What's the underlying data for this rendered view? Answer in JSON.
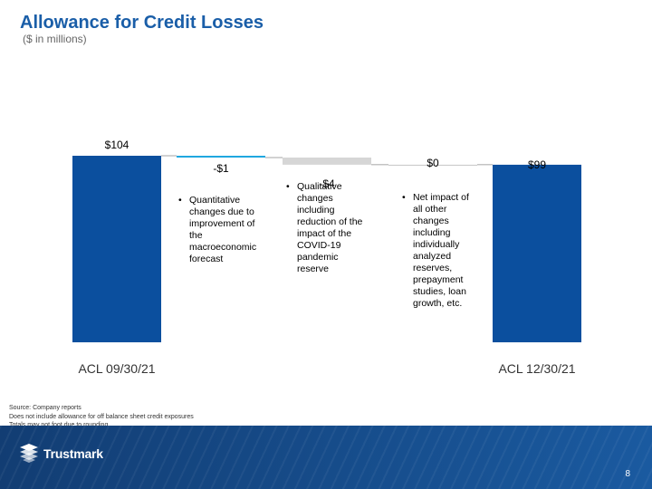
{
  "header": {
    "title": "Allowance for Credit Losses",
    "subtitle": "($ in millions)"
  },
  "chart_data": {
    "type": "bar",
    "subtype": "waterfall",
    "categories": [
      "ACL 09/30/21",
      "",
      "",
      "",
      "ACL 12/30/21"
    ],
    "steps": [
      {
        "kind": "total",
        "value": 104,
        "label": "$104",
        "color": "#0b4f9e"
      },
      {
        "kind": "delta",
        "value": -1,
        "label": "-$1",
        "color": "#1ea6df"
      },
      {
        "kind": "delta",
        "value": -4,
        "label": "-$4",
        "color": "#d6d6d6"
      },
      {
        "kind": "delta",
        "value": 0,
        "label": "$0",
        "color": "#cccccc"
      },
      {
        "kind": "total",
        "value": 99,
        "label": "$99",
        "color": "#0b4f9e"
      }
    ],
    "ylim": [
      0,
      104
    ],
    "grid": false,
    "legend": "none"
  },
  "notes": [
    {
      "text": "Quantitative changes due to improvement of the macroeconomic forecast"
    },
    {
      "text": "Qualitative changes including reduction of the impact of the COVID-19 pandemic reserve"
    },
    {
      "text": "Net impact of all other changes including individually analyzed reserves, prepayment studies, loan growth, etc."
    }
  ],
  "footnotes": {
    "line1": "Source: Company reports",
    "line2": "Does not include allowance for off balance sheet credit exposures",
    "line3": "Totals may not foot due to rounding"
  },
  "footer": {
    "logo_text": "Trustmark",
    "logo_icon": "trustmark-logo-icon",
    "page_number": "8",
    "background": "#164a87"
  }
}
